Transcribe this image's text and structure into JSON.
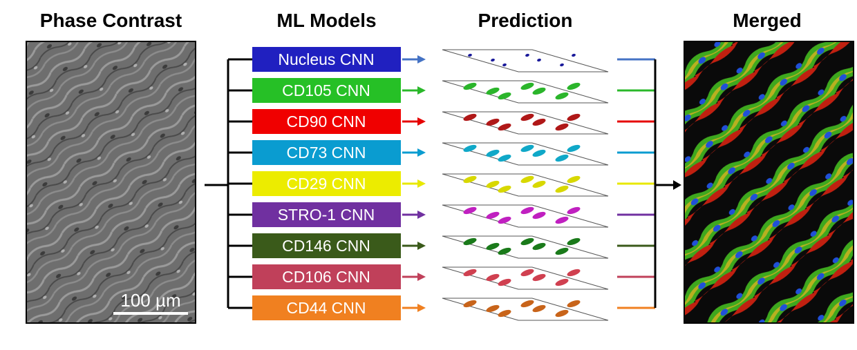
{
  "titles": {
    "phase": "Phase Contrast",
    "models": "ML Models",
    "prediction": "Prediction",
    "merged": "Merged"
  },
  "scale_bar": "100 µm",
  "models": [
    {
      "label": "Nucleus CNN",
      "box_color": "#2020c0",
      "layer_color": "#1a1a9a",
      "line_color": "#4472c4"
    },
    {
      "label": "CD105 CNN",
      "box_color": "#26c026",
      "layer_color": "#2bb52b",
      "line_color": "#2ab82a"
    },
    {
      "label": "CD90 CNN",
      "box_color": "#f00000",
      "layer_color": "#b01818",
      "line_color": "#e60000"
    },
    {
      "label": "CD73 CNN",
      "box_color": "#0a9cd0",
      "layer_color": "#10a8c8",
      "line_color": "#0a9cd0"
    },
    {
      "label": "CD29 CNN",
      "box_color": "#ecec00",
      "layer_color": "#d8d800",
      "line_color": "#e8e800"
    },
    {
      "label": "STRO-1 CNN",
      "box_color": "#7030a0",
      "layer_color": "#c020c0",
      "line_color": "#7030a0"
    },
    {
      "label": "CD146 CNN",
      "box_color": "#3a5a1a",
      "layer_color": "#1a7a1a",
      "line_color": "#3a5a1a"
    },
    {
      "label": "CD106 CNN",
      "box_color": "#c0405a",
      "layer_color": "#d04050",
      "line_color": "#c0405a"
    },
    {
      "label": "CD44 CNN",
      "box_color": "#f08020",
      "layer_color": "#c8641a",
      "line_color": "#f08020"
    }
  ]
}
